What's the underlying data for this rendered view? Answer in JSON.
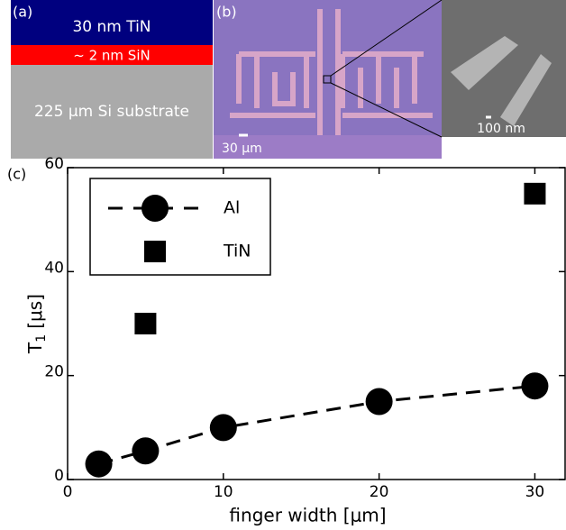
{
  "panel_a": {
    "label": "(a)",
    "layers": [
      "30 nm TiN",
      "~ 2 nm SiN",
      "225 μm Si substrate"
    ]
  },
  "panel_b": {
    "label": "(b)",
    "scale_bar": "30 μm",
    "inset_scale_bar": "100 nm"
  },
  "panel_c": {
    "label": "(c)"
  },
  "chart_data": {
    "type": "scatter",
    "xlabel": "finger width [μm]",
    "ylabel_parts": [
      "T",
      "1",
      "[μs]"
    ],
    "xlim": [
      0,
      32
    ],
    "ylim": [
      0,
      60
    ],
    "xticks": [
      0,
      10,
      20,
      30
    ],
    "yticks": [
      0,
      20,
      40,
      60
    ],
    "legend": "top-left",
    "series": [
      {
        "name": "Al",
        "marker": "circle",
        "line": "dashed",
        "color": "#000000",
        "x": [
          2,
          5,
          10,
          20,
          30
        ],
        "values": [
          3,
          5.5,
          10,
          15,
          18
        ]
      },
      {
        "name": "TiN",
        "marker": "square",
        "color": "#000000",
        "x": [
          5,
          30
        ],
        "values": [
          30,
          55
        ]
      }
    ]
  }
}
